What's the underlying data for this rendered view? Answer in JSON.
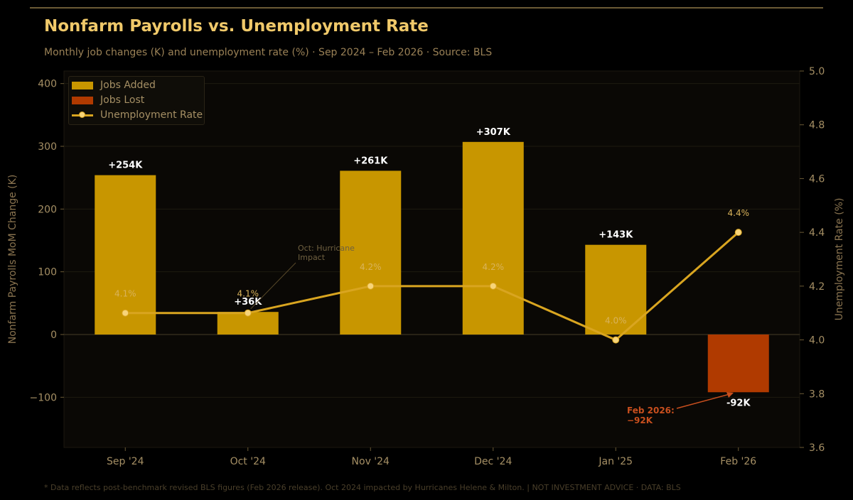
{
  "title": "Nonfarm Payrolls vs. Unemployment Rate",
  "subtitle": "Monthly job changes (K) and unemployment rate (%) · Sep 2024 – Feb 2026 · Source: BLS",
  "footnote": "* Data reflects post-benchmark revised BLS figures (Feb 2026 release). Oct 2024 impacted by Hurricanes Helene & Milton.  |  NOT INVESTMENT ADVICE · DATA: BLS",
  "legend": {
    "jobs_added": "Jobs Added",
    "jobs_lost": "Jobs Lost",
    "unemployment": "Unemployment Rate"
  },
  "colors": {
    "gain": "#c89600",
    "loss": "#b03a00",
    "line": "#d9a520",
    "marker": "#f7d47a",
    "annotation_red": "#c84f1e"
  },
  "annotations": {
    "hurricane_line1": "Oct: Hurricane",
    "hurricane_line2": "Impact",
    "feb_line1": "Feb 2026:",
    "feb_line2": "−92K"
  },
  "chart_data": {
    "type": "bar",
    "categories": [
      "Sep '24",
      "Oct '24",
      "Nov '24",
      "Dec '24",
      "Jan '25",
      "Feb '26"
    ],
    "series": [
      {
        "name": "Nonfarm Payrolls MoM Change (K)",
        "values": [
          254,
          36,
          261,
          307,
          143,
          -92
        ],
        "labels": [
          "+254K",
          "+36K",
          "+261K",
          "+307K",
          "+143K",
          "-92K"
        ]
      },
      {
        "name": "Unemployment Rate",
        "type": "line",
        "axis": "right",
        "values": [
          4.1,
          4.1,
          4.2,
          4.2,
          4.0,
          4.4
        ],
        "labels": [
          "4.1%",
          "4.1%",
          "4.2%",
          "4.2%",
          "4.0%",
          "4.4%"
        ]
      }
    ],
    "ylabel": "Nonfarm Payrolls MoM Change (K)",
    "y2label": "Unemployment Rate (%)",
    "ylim": [
      -180,
      420
    ],
    "yticks": [
      -100,
      0,
      100,
      200,
      300,
      400
    ],
    "ytick_labels": [
      "−100",
      "0",
      "100",
      "200",
      "300",
      "400"
    ],
    "y2lim": [
      3.6,
      5.0
    ],
    "y2ticks": [
      3.6,
      3.8,
      4.0,
      4.2,
      4.4,
      4.6,
      4.8,
      5.0
    ],
    "y2tick_labels": [
      "3.6",
      "3.8",
      "4.0",
      "4.2",
      "4.4",
      "4.6",
      "4.8",
      "5.0"
    ],
    "legend_position": "top-left",
    "grid": true
  }
}
